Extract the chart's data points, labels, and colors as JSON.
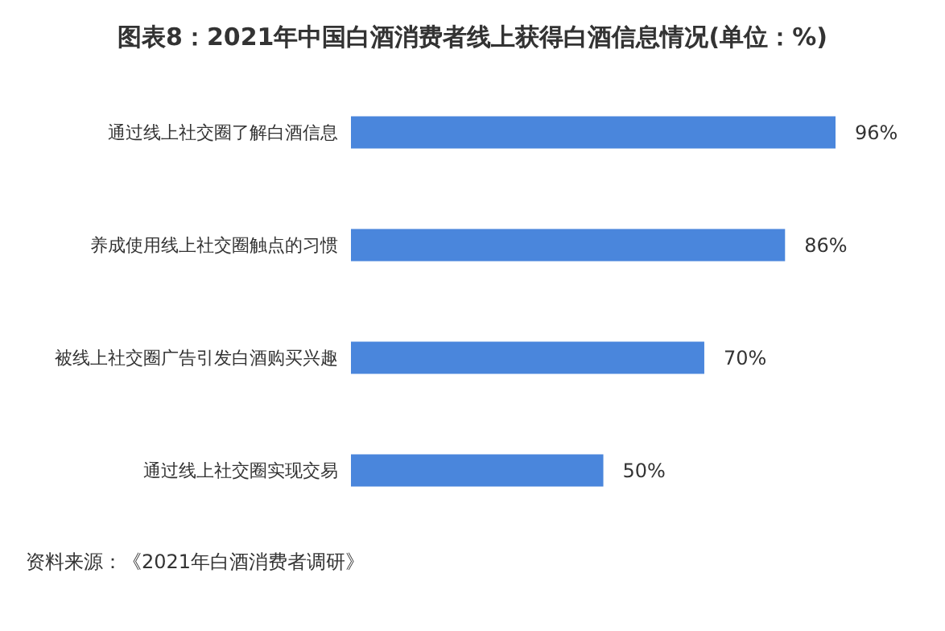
{
  "chart_data": {
    "type": "bar",
    "orientation": "horizontal",
    "title": "图表8：2021年中国白酒消费者线上获得白酒信息情况(单位：%)",
    "categories": [
      "通过线上社交圈了解白酒信息",
      "养成使用线上社交圈触点的习惯",
      "被线上社交圈广告引发白酒购买兴趣",
      "通过线上社交圈实现交易"
    ],
    "values": [
      96,
      86,
      70,
      50
    ],
    "color": "#4a86dc",
    "value_labels": [
      "96%",
      "86%",
      "70%",
      "50%"
    ],
    "annotations": [
      "资料来源：《2021年白酒消费者调研》"
    ]
  }
}
